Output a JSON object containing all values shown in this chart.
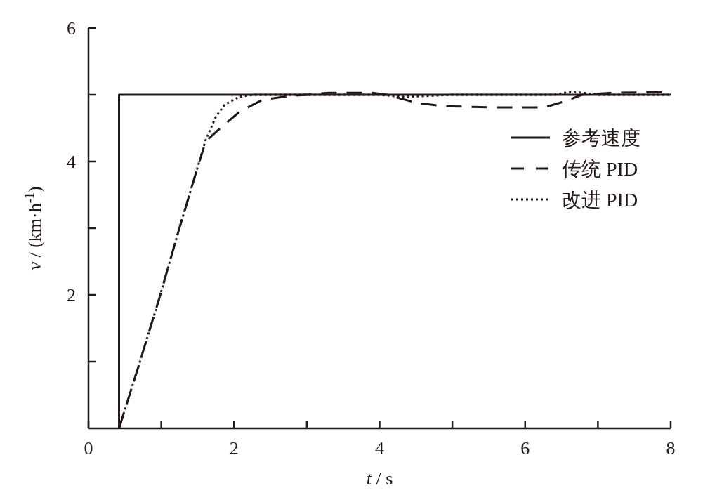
{
  "chart_data": {
    "type": "line",
    "xlabel": "*t* / s",
    "ylabel": "*v* / (km·h$^{-1}$)",
    "xlim": [
      0,
      8
    ],
    "ylim": [
      0,
      6
    ],
    "xticks": [
      0,
      {
        "value": 1,
        "label": null
      },
      2,
      {
        "value": 3,
        "label": null
      },
      4,
      {
        "value": 5,
        "label": null
      },
      6,
      {
        "value": 7,
        "label": null
      },
      8
    ],
    "yticks": [
      {
        "value": 1,
        "label": null
      },
      2,
      {
        "value": 3,
        "label": null
      },
      4,
      {
        "value": 5,
        "label": null
      },
      6
    ],
    "legend": "right",
    "grid": false,
    "series": [
      {
        "name": "参考速度",
        "color": "#231815",
        "line_style": "solid",
        "x": [
          0.42,
          0.42,
          8
        ],
        "values": [
          0,
          5,
          5
        ]
      },
      {
        "name": "传统 PID",
        "color": "#231815",
        "line_style": "dashed",
        "x": [
          0.42,
          0.69,
          0.97,
          1.23,
          1.46,
          1.61,
          1.81,
          2.07,
          2.38,
          2.74,
          3.0,
          3.3,
          3.9,
          4.1,
          4.23,
          4.51,
          4.88,
          5.58,
          6.26,
          6.57,
          6.78,
          7.2,
          8
        ],
        "values": [
          0,
          0.94,
          1.94,
          2.93,
          3.77,
          4.3,
          4.5,
          4.74,
          4.92,
          4.98,
          5.0,
          5.03,
          5.03,
          5.0,
          4.96,
          4.88,
          4.83,
          4.81,
          4.81,
          4.91,
          5.0,
          5.03,
          5.04
        ]
      },
      {
        "name": "改进 PID",
        "color": "#231815",
        "line_style": "dotted",
        "x": [
          0.42,
          0.69,
          0.97,
          1.23,
          1.46,
          1.61,
          1.75,
          1.87,
          2.07,
          2.26,
          3.0,
          4.0,
          4.3,
          4.6,
          5.0,
          6.4,
          6.6,
          6.8,
          7.0,
          8
        ],
        "values": [
          0,
          0.94,
          1.94,
          2.93,
          3.77,
          4.32,
          4.67,
          4.85,
          4.97,
          5.0,
          5.0,
          5.0,
          4.97,
          4.98,
          5.0,
          5.0,
          5.04,
          5.03,
          5.0,
          5.0
        ]
      }
    ]
  }
}
